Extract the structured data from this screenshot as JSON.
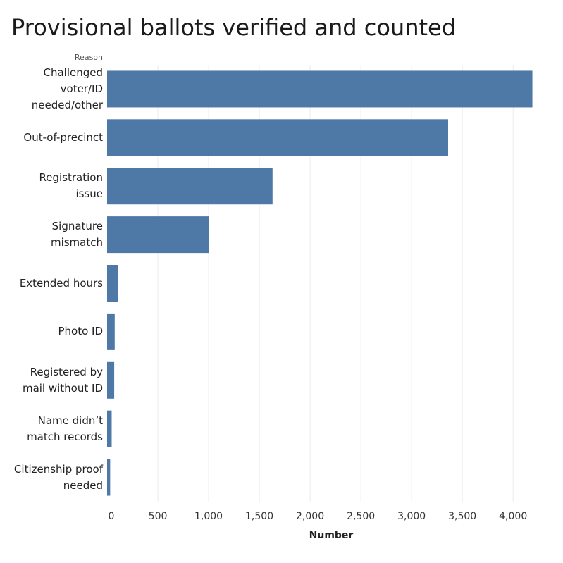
{
  "chart_data": {
    "type": "bar",
    "orientation": "horizontal",
    "title": "Provisional ballots verified and counted",
    "category_axis_label": "Reason",
    "xlabel": "Number",
    "categories": [
      "Challenged voter/ID needed/other",
      "Out-of-precinct",
      "Registration issue",
      "Signature mismatch",
      "Extended hours",
      "Photo ID",
      "Registered by mail without ID",
      "Name didn’t match records",
      "Citizenship proof needed"
    ],
    "category_lines": [
      [
        "Challenged",
        "voter/ID",
        "needed/other"
      ],
      [
        "Out-of-precinct"
      ],
      [
        "Registration",
        "issue"
      ],
      [
        "Signature",
        "mismatch"
      ],
      [
        "Extended hours"
      ],
      [
        "Photo ID"
      ],
      [
        "Registered by",
        "mail without ID"
      ],
      [
        "Name didn’t",
        "match records"
      ],
      [
        "Citizenship proof",
        "needed"
      ]
    ],
    "values": [
      4190,
      3360,
      1630,
      1000,
      110,
      75,
      70,
      45,
      30
    ],
    "xlim": [
      0,
      4200
    ],
    "xticks": [
      0,
      500,
      1000,
      1500,
      2000,
      2500,
      3000,
      3500,
      4000
    ],
    "xtick_labels": [
      "0",
      "500",
      "1,000",
      "1,500",
      "2,000",
      "2,500",
      "3,000",
      "3,500",
      "4,000"
    ],
    "grid": "vertical",
    "bar_color": "#4e79a7",
    "grid_color": "#ececec"
  }
}
